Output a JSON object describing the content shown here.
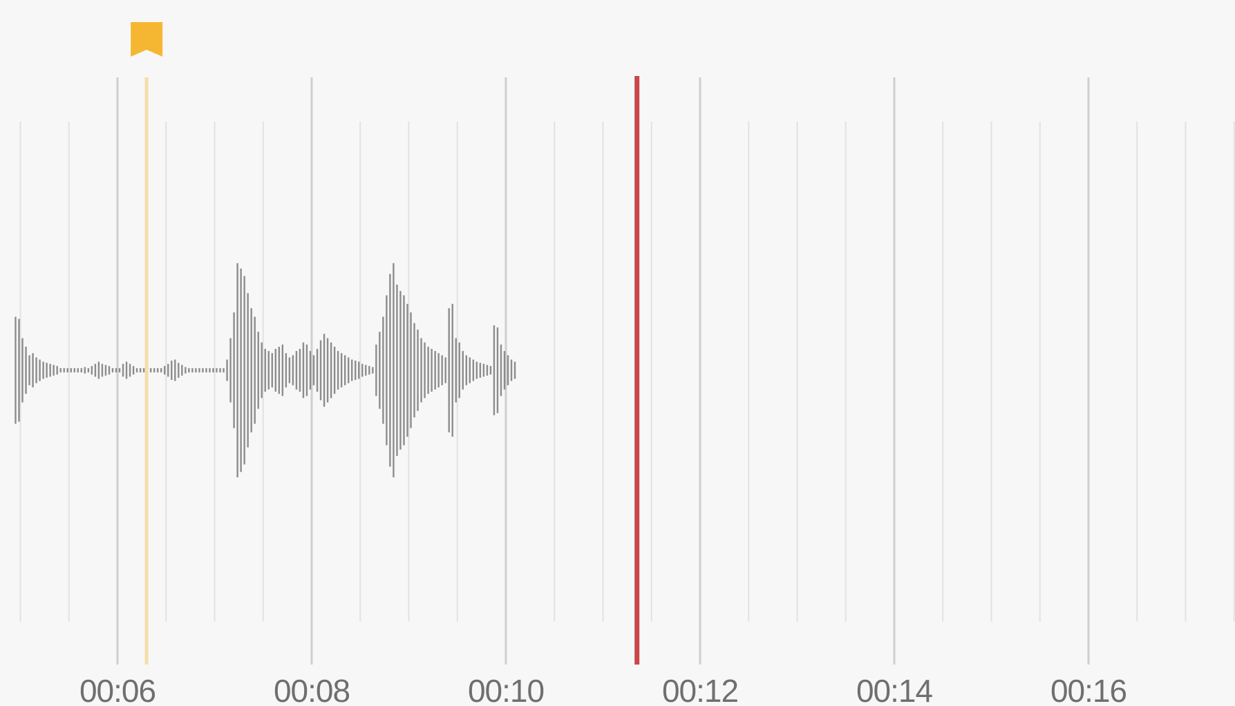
{
  "timeline": {
    "start_seconds": 5.0,
    "seconds_per_major_tick": 2,
    "minor_ticks_per_major": 4,
    "tick_labels": [
      "00:06",
      "00:08",
      "00:10",
      "00:12",
      "00:14",
      "00:16"
    ],
    "tick_label_seconds": [
      6,
      8,
      10,
      12,
      14,
      16
    ]
  },
  "playhead": {
    "seconds": 11.35,
    "color": "#c9474a"
  },
  "bookmark": {
    "seconds": 6.3,
    "color": "#f5b731",
    "line_color": "#f3dfa6",
    "icon": "bookmark-icon"
  },
  "waveform": {
    "color": "#8c8c8c",
    "recorded_until_seconds": 11.3,
    "samples_per_second": 28,
    "amplitudes": [
      0.5,
      0.48,
      0.3,
      0.22,
      0.14,
      0.16,
      0.12,
      0.1,
      0.08,
      0.07,
      0.06,
      0.05,
      0.04,
      0.02,
      0.02,
      0.02,
      0.02,
      0.02,
      0.02,
      0.02,
      0.03,
      0.02,
      0.04,
      0.06,
      0.08,
      0.06,
      0.05,
      0.04,
      0.02,
      0.02,
      0.02,
      0.06,
      0.08,
      0.06,
      0.04,
      0.02,
      0.02,
      0.02,
      0.02,
      0.02,
      0.02,
      0.02,
      0.02,
      0.04,
      0.06,
      0.09,
      0.1,
      0.07,
      0.05,
      0.03,
      0.02,
      0.02,
      0.02,
      0.02,
      0.02,
      0.02,
      0.02,
      0.02,
      0.02,
      0.02,
      0.02,
      0.1,
      0.3,
      0.54,
      1.0,
      0.95,
      0.88,
      0.72,
      0.58,
      0.5,
      0.36,
      0.26,
      0.2,
      0.18,
      0.16,
      0.2,
      0.22,
      0.24,
      0.16,
      0.12,
      0.14,
      0.18,
      0.2,
      0.26,
      0.24,
      0.18,
      0.14,
      0.2,
      0.28,
      0.34,
      0.3,
      0.26,
      0.22,
      0.18,
      0.16,
      0.14,
      0.12,
      0.1,
      0.09,
      0.08,
      0.06,
      0.05,
      0.04,
      0.03,
      0.24,
      0.36,
      0.5,
      0.7,
      0.9,
      1.0,
      0.8,
      0.74,
      0.7,
      0.62,
      0.54,
      0.44,
      0.38,
      0.3,
      0.26,
      0.22,
      0.2,
      0.18,
      0.16,
      0.14,
      0.12,
      0.58,
      0.62,
      0.3,
      0.26,
      0.18,
      0.14,
      0.12,
      0.1,
      0.08,
      0.07,
      0.06,
      0.05,
      0.04,
      0.42,
      0.4,
      0.24,
      0.18,
      0.14,
      0.1,
      0.08
    ]
  }
}
